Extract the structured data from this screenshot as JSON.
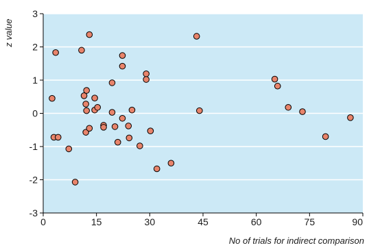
{
  "chart_data": {
    "type": "scatter",
    "title": "",
    "xlabel": "No of trials for indirect comparison",
    "ylabel": "z value",
    "xlim": [
      0,
      90
    ],
    "ylim": [
      -3,
      3
    ],
    "xticks": [
      0,
      15,
      30,
      45,
      60,
      75,
      90
    ],
    "yticks": [
      -3,
      -2,
      -1,
      0,
      1,
      2,
      3
    ],
    "grid": "horizontal",
    "background": "#cce9f6",
    "gridline_color": "#ffffff",
    "marker_color": "#e8846b",
    "marker_edge": "#000000",
    "points": [
      {
        "x": 2.5,
        "y": 0.45
      },
      {
        "x": 3.0,
        "y": -0.72
      },
      {
        "x": 3.5,
        "y": 1.83
      },
      {
        "x": 4.2,
        "y": -0.72
      },
      {
        "x": 7.2,
        "y": -1.07
      },
      {
        "x": 9.0,
        "y": -2.07
      },
      {
        "x": 10.8,
        "y": 1.9
      },
      {
        "x": 11.5,
        "y": 0.53
      },
      {
        "x": 12.2,
        "y": 0.69
      },
      {
        "x": 12.0,
        "y": 0.28
      },
      {
        "x": 12.2,
        "y": 0.08
      },
      {
        "x": 12.0,
        "y": -0.57
      },
      {
        "x": 13.0,
        "y": 2.37
      },
      {
        "x": 13.0,
        "y": -0.45
      },
      {
        "x": 14.5,
        "y": 0.46
      },
      {
        "x": 14.5,
        "y": 0.1
      },
      {
        "x": 15.3,
        "y": 0.18
      },
      {
        "x": 17.0,
        "y": -0.36
      },
      {
        "x": 17.0,
        "y": -0.42
      },
      {
        "x": 19.4,
        "y": 0.92
      },
      {
        "x": 19.4,
        "y": 0.03
      },
      {
        "x": 20.2,
        "y": -0.4
      },
      {
        "x": 21.0,
        "y": -0.87
      },
      {
        "x": 22.3,
        "y": 1.74
      },
      {
        "x": 22.3,
        "y": 1.42
      },
      {
        "x": 22.3,
        "y": -0.15
      },
      {
        "x": 24.0,
        "y": -0.38
      },
      {
        "x": 24.2,
        "y": -0.74
      },
      {
        "x": 25.0,
        "y": 0.1
      },
      {
        "x": 27.2,
        "y": -0.98
      },
      {
        "x": 29.0,
        "y": 1.19
      },
      {
        "x": 29.0,
        "y": 1.02
      },
      {
        "x": 30.2,
        "y": -0.53
      },
      {
        "x": 32.0,
        "y": -1.67
      },
      {
        "x": 36.0,
        "y": -1.5
      },
      {
        "x": 43.2,
        "y": 2.32
      },
      {
        "x": 44.0,
        "y": 0.08
      },
      {
        "x": 65.2,
        "y": 1.03
      },
      {
        "x": 66.0,
        "y": 0.82
      },
      {
        "x": 69.0,
        "y": 0.18
      },
      {
        "x": 73.0,
        "y": 0.05
      },
      {
        "x": 79.5,
        "y": -0.7
      },
      {
        "x": 86.5,
        "y": -0.13
      }
    ]
  }
}
